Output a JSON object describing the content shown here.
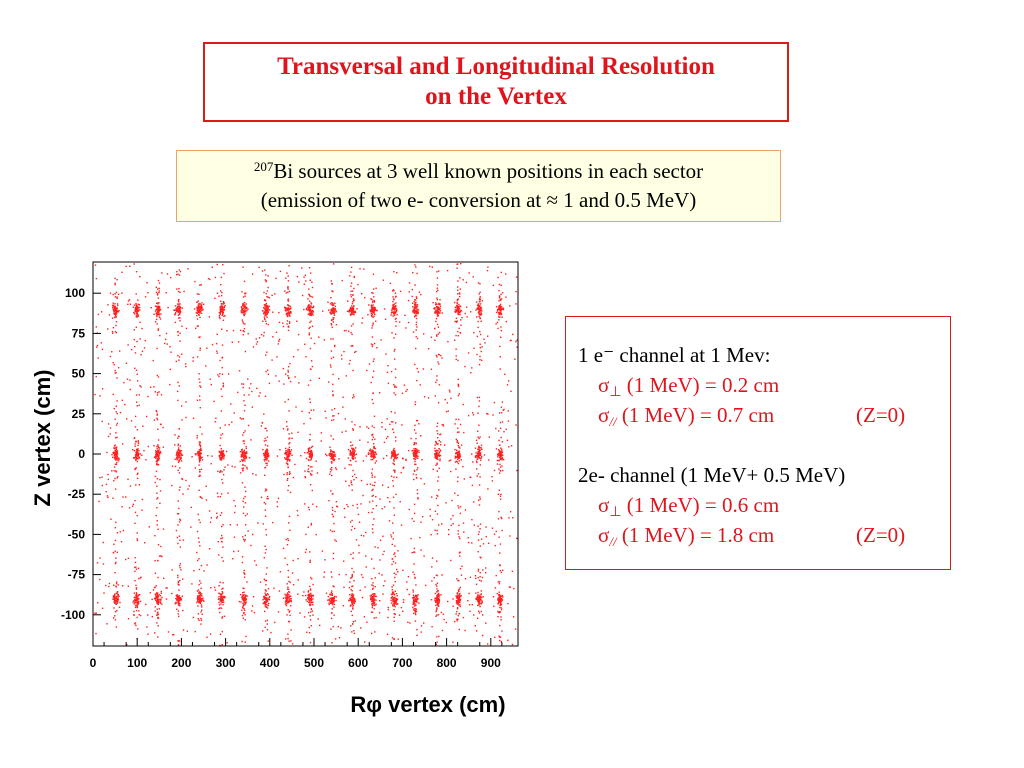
{
  "title": {
    "line1": "Transversal and Longitudinal Resolution",
    "line2": "on the Vertex"
  },
  "sources": {
    "isotope_mass": "207",
    "line1_rest": "Bi sources at 3 well known positions in each sector",
    "line2": "(emission of two e- conversion at ≈ 1 and 0.5 MeV)"
  },
  "resolution": {
    "one_e": {
      "heading": "1 e⁻ channel at 1 Mev:",
      "perp": {
        "symbol": "σ",
        "sub": "⊥",
        "value": "(1 MeV) = 0.2 cm"
      },
      "par": {
        "symbol": "σ",
        "sub": "//",
        "value": "(1 MeV) = 0.7 cm",
        "note": "(Z=0)"
      }
    },
    "two_e": {
      "heading": "2e- channel (1 MeV+ 0.5 MeV)",
      "perp": {
        "symbol": "σ",
        "sub": "⊥",
        "value": "(1 MeV) = 0.6 cm"
      },
      "par": {
        "symbol": "σ",
        "sub": "//",
        "value": "(1 MeV) = 1.8 cm",
        "note": "(Z=0)"
      }
    }
  },
  "chart_data": {
    "type": "scatter",
    "title": "",
    "xlabel": "Rφ vertex (cm)",
    "ylabel": "Z vertex (cm)",
    "xlim": [
      0,
      950
    ],
    "ylim": [
      -120,
      120
    ],
    "xticks": [
      0,
      100,
      200,
      300,
      400,
      500,
      600,
      700,
      800,
      900
    ],
    "yticks": [
      100,
      75,
      50,
      25,
      0,
      -25,
      -50,
      -75,
      -100
    ],
    "grid": false,
    "marker_color": "#ff2020",
    "source_z_positions": [
      90,
      0,
      -90
    ],
    "source_rphi_positions": [
      50,
      97,
      145,
      192,
      240,
      290,
      340,
      390,
      440,
      490,
      540,
      585,
      632,
      680,
      728,
      778,
      825,
      872,
      920
    ],
    "background_points_approx": 1200
  }
}
